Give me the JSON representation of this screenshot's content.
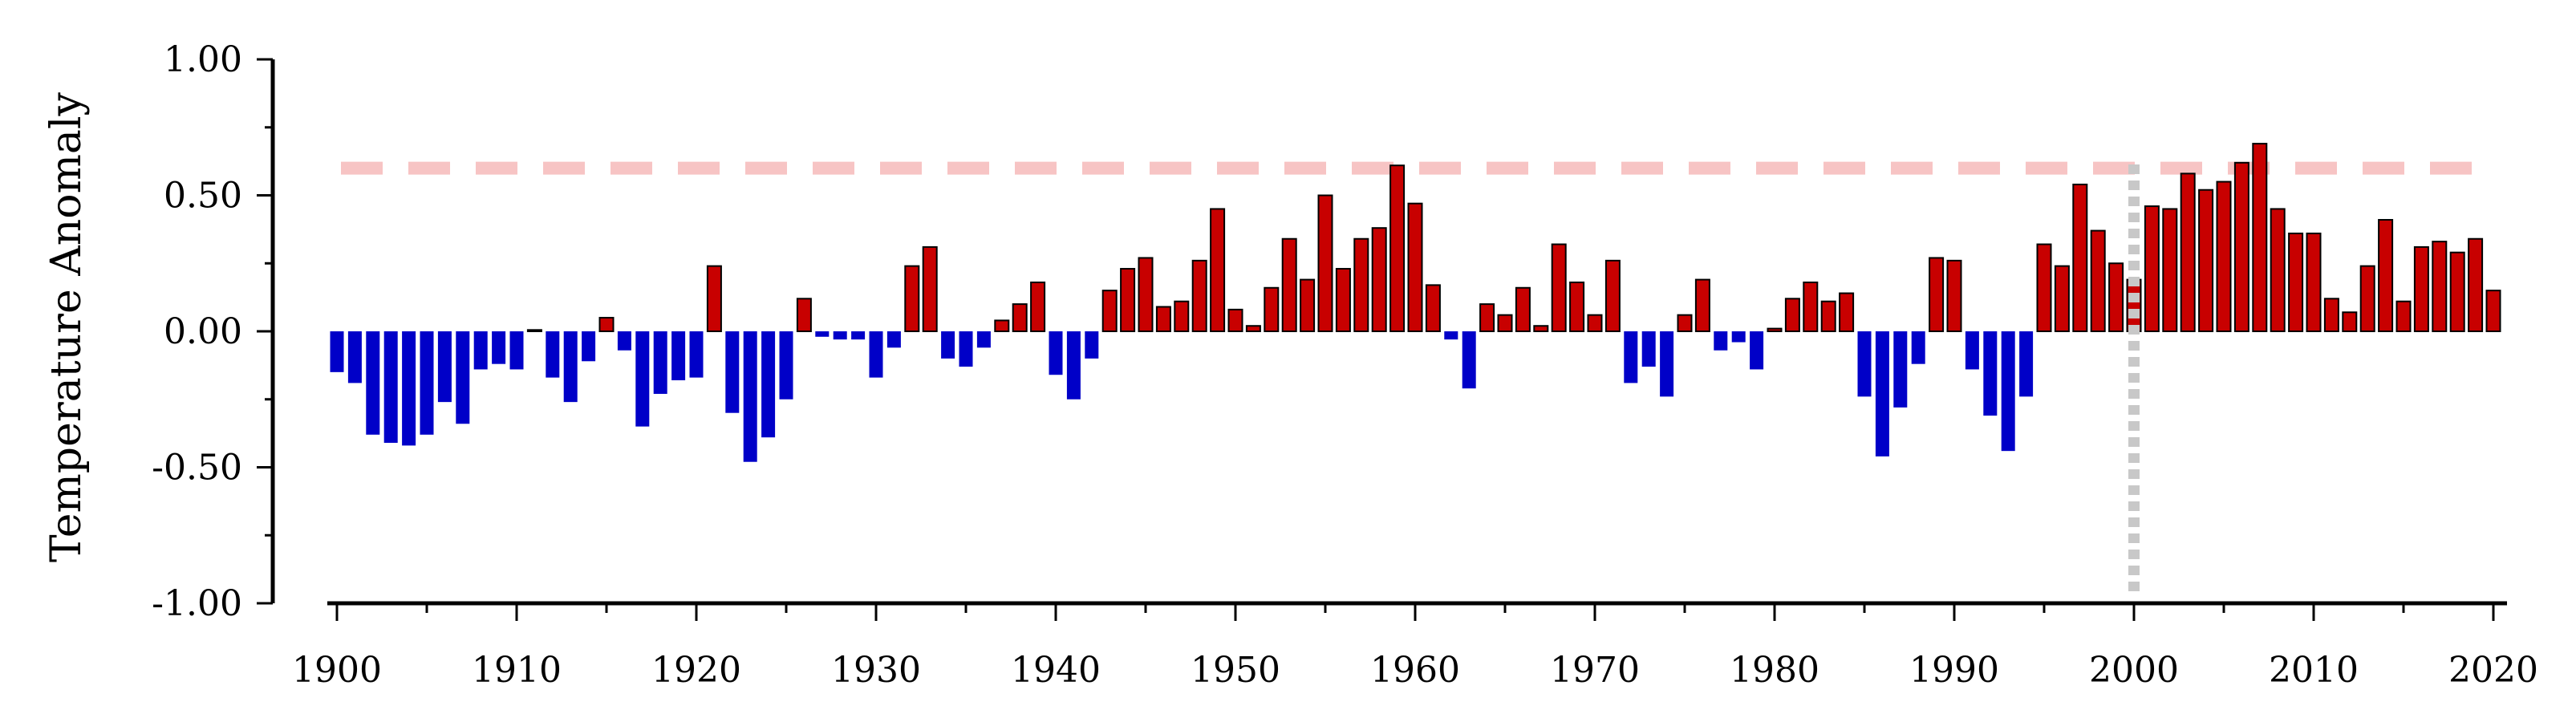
{
  "chart_data": {
    "type": "bar",
    "title": "",
    "xlabel": "",
    "ylabel": "Temperature Anomaly",
    "ylim": [
      -1.0,
      1.0
    ],
    "xlim": [
      1899.5,
      2020.7
    ],
    "yticks": [
      "-1.00",
      "-0.50",
      "0.00",
      "0.50",
      "1.00"
    ],
    "xticks": [
      "1900",
      "1910",
      "1920",
      "1930",
      "1940",
      "1950",
      "1960",
      "1970",
      "1980",
      "1990",
      "2000",
      "2010",
      "2020"
    ],
    "grid": false,
    "legend": "none",
    "threshold_line": {
      "value": 0.6,
      "style": "dashed",
      "color": "#f7c4c4"
    },
    "reference_year": {
      "value": 2000,
      "style": "dotted",
      "color": "#c8c8c8"
    },
    "colors": {
      "positive": "#c80000",
      "negative": "#0000c8",
      "axis": "#000000"
    },
    "x": [
      1900,
      1901,
      1902,
      1903,
      1904,
      1905,
      1906,
      1907,
      1908,
      1909,
      1910,
      1911,
      1912,
      1913,
      1914,
      1915,
      1916,
      1917,
      1918,
      1919,
      1920,
      1921,
      1922,
      1923,
      1924,
      1925,
      1926,
      1927,
      1928,
      1929,
      1930,
      1931,
      1932,
      1933,
      1934,
      1935,
      1936,
      1937,
      1938,
      1939,
      1940,
      1941,
      1942,
      1943,
      1944,
      1945,
      1946,
      1947,
      1948,
      1949,
      1950,
      1951,
      1952,
      1953,
      1954,
      1955,
      1956,
      1957,
      1958,
      1959,
      1960,
      1961,
      1962,
      1963,
      1964,
      1965,
      1966,
      1967,
      1968,
      1969,
      1970,
      1971,
      1972,
      1973,
      1974,
      1975,
      1976,
      1977,
      1978,
      1979,
      1980,
      1981,
      1982,
      1983,
      1984,
      1985,
      1986,
      1987,
      1988,
      1989,
      1990,
      1991,
      1992,
      1993,
      1994,
      1995,
      1996,
      1997,
      1998,
      1999,
      2000,
      2001,
      2002,
      2003,
      2004,
      2005,
      2006,
      2007,
      2008,
      2009,
      2010,
      2011,
      2012,
      2013,
      2014,
      2015,
      2016,
      2017,
      2018,
      2019,
      2020
    ],
    "values": [
      -0.15,
      -0.19,
      -0.38,
      -0.41,
      -0.42,
      -0.38,
      -0.26,
      -0.34,
      -0.14,
      -0.12,
      -0.14,
      0.005,
      -0.17,
      -0.26,
      -0.11,
      0.05,
      -0.07,
      -0.35,
      -0.23,
      -0.18,
      -0.17,
      0.24,
      -0.3,
      -0.48,
      -0.39,
      -0.25,
      0.12,
      -0.02,
      -0.03,
      -0.03,
      -0.17,
      -0.06,
      0.24,
      0.31,
      -0.1,
      -0.13,
      -0.06,
      0.04,
      0.1,
      0.18,
      -0.16,
      -0.25,
      -0.1,
      0.15,
      0.23,
      0.27,
      0.09,
      0.11,
      0.26,
      0.45,
      0.08,
      0.02,
      0.16,
      0.34,
      0.19,
      0.5,
      0.23,
      0.34,
      0.38,
      0.61,
      0.47,
      0.17,
      -0.03,
      -0.21,
      0.1,
      0.06,
      0.16,
      0.02,
      0.32,
      0.18,
      0.06,
      0.26,
      -0.19,
      -0.13,
      -0.24,
      0.06,
      0.19,
      -0.07,
      -0.04,
      -0.14,
      0.01,
      0.12,
      0.18,
      0.11,
      0.14,
      -0.24,
      -0.46,
      -0.28,
      -0.12,
      0.27,
      0.26,
      -0.14,
      -0.31,
      -0.44,
      -0.24,
      0.32,
      0.24,
      0.54,
      0.37,
      0.25,
      0.19,
      0.46,
      0.45,
      0.58,
      0.52,
      0.55,
      0.62,
      0.69,
      0.45,
      0.36,
      0.36,
      0.12,
      0.07,
      0.24,
      0.41,
      0.11,
      0.31,
      0.33,
      0.29,
      0.34,
      0.15
    ]
  }
}
